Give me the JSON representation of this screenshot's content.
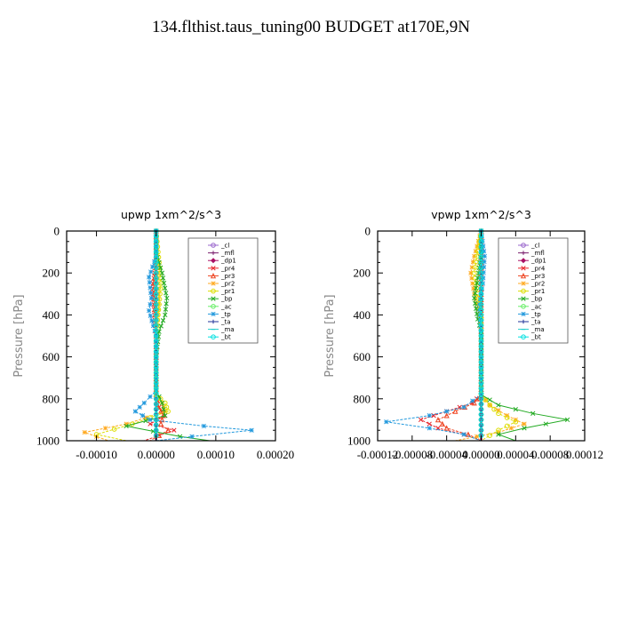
{
  "figure_title": "134.flthist.taus_tuning00  BUDGET at170E,9N",
  "series_colors": {
    "_cl": "#9966cc",
    "_mfl": "#7a1f6e",
    "_dp1": "#aa1166",
    "_pr4": "#e8242a",
    "_pr3": "#ee4422",
    "_pr2": "#ffaa22",
    "_pr1": "#dddd00",
    "_bp": "#22aa22",
    "_ac": "#66ee66",
    "_tp": "#2299dd",
    "_ta": "#223399",
    "_ma": "#22cccc",
    "_bt": "#00e0e0"
  },
  "chart_data": [
    {
      "type": "line",
      "title": "upwp   1xm^2/s^3",
      "ylabel": "Pressure [hPa]",
      "xlabel": "",
      "xlim": [
        -0.00015,
        0.0002
      ],
      "ylim": [
        1000,
        0
      ],
      "y_inverted": true,
      "xticks": [
        "-0.00010",
        "0.00000",
        "0.00010",
        "0.00020"
      ],
      "xtick_values": [
        -0.0001,
        0,
        0.0001,
        0.0002
      ],
      "yticks": [
        "0",
        "200",
        "400",
        "600",
        "800",
        "1000"
      ],
      "ytick_values": [
        0,
        200,
        400,
        600,
        800,
        1000
      ],
      "legend_position": "top-right",
      "series": [
        {
          "name": "_cl",
          "points": [
            [
              0,
              0
            ],
            [
              0,
              1000
            ]
          ]
        },
        {
          "name": "_mfl",
          "points": [
            [
              0,
              0
            ],
            [
              0,
              1000
            ]
          ]
        },
        {
          "name": "_dp1",
          "points": [
            [
              0,
              0
            ],
            [
              0,
              1000
            ]
          ]
        },
        {
          "name": "_pr4",
          "points": [
            [
              0,
              0
            ],
            [
              0,
              150
            ],
            [
              -5e-06,
              250
            ],
            [
              -4e-06,
              350
            ],
            [
              0,
              500
            ],
            [
              0,
              780
            ],
            [
              5e-06,
              840
            ],
            [
              1.5e-05,
              880
            ],
            [
              -1e-05,
              920
            ],
            [
              3e-05,
              950
            ],
            [
              -2e-05,
              1000
            ]
          ]
        },
        {
          "name": "_pr3",
          "points": [
            [
              0,
              0
            ],
            [
              0,
              150
            ],
            [
              -4e-06,
              250
            ],
            [
              -3e-06,
              350
            ],
            [
              0,
              500
            ],
            [
              0,
              780
            ],
            [
              4e-06,
              840
            ],
            [
              1.2e-05,
              880
            ],
            [
              8e-06,
              920
            ],
            [
              2e-05,
              950
            ],
            [
              -1e-05,
              1000
            ]
          ]
        },
        {
          "name": "_pr2",
          "points": [
            [
              0,
              0
            ],
            [
              3e-06,
              200
            ],
            [
              4e-06,
              350
            ],
            [
              0,
              500
            ],
            [
              0,
              780
            ],
            [
              1e-05,
              820
            ],
            [
              1.5e-05,
              860
            ],
            [
              -5e-05,
              920
            ],
            [
              -0.00012,
              960
            ],
            [
              -8e-05,
              1000
            ]
          ]
        },
        {
          "name": "_pr1",
          "points": [
            [
              0,
              0
            ],
            [
              5e-06,
              150
            ],
            [
              8e-06,
              250
            ],
            [
              5e-06,
              350
            ],
            [
              0,
              500
            ],
            [
              0,
              780
            ],
            [
              1.5e-05,
              820
            ],
            [
              2e-05,
              860
            ],
            [
              -4e-05,
              920
            ],
            [
              -0.0001,
              970
            ],
            [
              -5e-05,
              1000
            ]
          ]
        },
        {
          "name": "_bp",
          "points": [
            [
              0,
              0
            ],
            [
              0,
              100
            ],
            [
              1e-05,
              200
            ],
            [
              1.8e-05,
              320
            ],
            [
              1.5e-05,
              400
            ],
            [
              5e-06,
              480
            ],
            [
              0,
              600
            ],
            [
              0,
              760
            ],
            [
              1e-05,
              820
            ],
            [
              1.5e-05,
              880
            ],
            [
              -5e-05,
              930
            ],
            [
              4e-05,
              980
            ],
            [
              9e-05,
              1000
            ]
          ]
        },
        {
          "name": "_ac",
          "points": [
            [
              0,
              0
            ],
            [
              0,
              1000
            ]
          ]
        },
        {
          "name": "_tp",
          "points": [
            [
              0,
              0
            ],
            [
              0,
              120
            ],
            [
              -1.2e-05,
              220
            ],
            [
              -8e-06,
              320
            ],
            [
              -1.2e-05,
              380
            ],
            [
              0,
              500
            ],
            [
              0,
              760
            ],
            [
              -2e-05,
              820
            ],
            [
              -3.5e-05,
              860
            ],
            [
              -1e-05,
              900
            ],
            [
              8e-05,
              930
            ],
            [
              0.00016,
              950
            ],
            [
              6e-05,
              980
            ],
            [
              0,
              1000
            ]
          ]
        },
        {
          "name": "_ta",
          "points": [
            [
              0,
              0
            ],
            [
              0,
              1000
            ]
          ]
        },
        {
          "name": "_ma",
          "points": [
            [
              0,
              0
            ],
            [
              0,
              1000
            ]
          ]
        },
        {
          "name": "_bt",
          "points": [
            [
              0,
              0
            ],
            [
              0,
              1000
            ]
          ]
        }
      ]
    },
    {
      "type": "line",
      "title": "vpwp   1xm^2/s^3",
      "ylabel": "Pressure [hPa]",
      "xlabel": "",
      "xlim": [
        -0.00012,
        0.00012
      ],
      "ylim": [
        1000,
        0
      ],
      "y_inverted": true,
      "xticks": [
        "-0.00012",
        "-0.00008",
        "-0.00004",
        "0.00000",
        "0.00004",
        "0.00008",
        "0.00012"
      ],
      "xtick_values": [
        -0.00012,
        -8e-05,
        -4e-05,
        0,
        4e-05,
        8e-05,
        0.00012
      ],
      "yticks": [
        "0",
        "200",
        "400",
        "600",
        "800",
        "1000"
      ],
      "ytick_values": [
        0,
        200,
        400,
        600,
        800,
        1000
      ],
      "legend_position": "top-right",
      "series": [
        {
          "name": "_cl",
          "points": [
            [
              0,
              0
            ],
            [
              0,
              1000
            ]
          ]
        },
        {
          "name": "_mfl",
          "points": [
            [
              0,
              0
            ],
            [
              0,
              1000
            ]
          ]
        },
        {
          "name": "_dp1",
          "points": [
            [
              0,
              0
            ],
            [
              0,
              1000
            ]
          ]
        },
        {
          "name": "_pr4",
          "points": [
            [
              0,
              0
            ],
            [
              0,
              780
            ],
            [
              -1e-05,
              820
            ],
            [
              -4e-05,
              860
            ],
            [
              -7e-05,
              900
            ],
            [
              -5e-05,
              940
            ],
            [
              -2e-05,
              970
            ],
            [
              0,
              1000
            ]
          ]
        },
        {
          "name": "_pr3",
          "points": [
            [
              0,
              0
            ],
            [
              0,
              780
            ],
            [
              -8e-06,
              820
            ],
            [
              -3e-05,
              860
            ],
            [
              -5e-05,
              900
            ],
            [
              -4e-05,
              940
            ],
            [
              -1.5e-05,
              970
            ],
            [
              0,
              1000
            ]
          ]
        },
        {
          "name": "_pr2",
          "points": [
            [
              0,
              0
            ],
            [
              -8e-06,
              120
            ],
            [
              -1.2e-05,
              200
            ],
            [
              -8e-06,
              300
            ],
            [
              0,
              420
            ],
            [
              0,
              780
            ],
            [
              1e-05,
              830
            ],
            [
              3e-05,
              880
            ],
            [
              5e-05,
              920
            ],
            [
              2e-05,
              960
            ],
            [
              -3e-05,
              1000
            ]
          ]
        },
        {
          "name": "_pr1",
          "points": [
            [
              0,
              0
            ],
            [
              -5e-06,
              120
            ],
            [
              -8e-06,
              200
            ],
            [
              0,
              420
            ],
            [
              0,
              780
            ],
            [
              1e-05,
              830
            ],
            [
              2e-05,
              870
            ],
            [
              4e-05,
              910
            ],
            [
              2e-05,
              950
            ],
            [
              0,
              1000
            ]
          ]
        },
        {
          "name": "_bp",
          "points": [
            [
              0,
              0
            ],
            [
              0,
              100
            ],
            [
              -3e-06,
              200
            ],
            [
              -8e-06,
              320
            ],
            [
              -4e-06,
              420
            ],
            [
              0,
              480
            ],
            [
              0,
              780
            ],
            [
              2e-05,
              830
            ],
            [
              6e-05,
              870
            ],
            [
              0.0001,
              900
            ],
            [
              5e-05,
              940
            ],
            [
              2e-05,
              970
            ],
            [
              4e-05,
              1000
            ]
          ]
        },
        {
          "name": "_ac",
          "points": [
            [
              0,
              0
            ],
            [
              0,
              1000
            ]
          ]
        },
        {
          "name": "_tp",
          "points": [
            [
              0,
              0
            ],
            [
              4e-06,
              120
            ],
            [
              2e-06,
              250
            ],
            [
              -2e-06,
              350
            ],
            [
              0,
              500
            ],
            [
              0,
              780
            ],
            [
              -2e-05,
              840
            ],
            [
              -6e-05,
              880
            ],
            [
              -0.00011,
              910
            ],
            [
              -6e-05,
              940
            ],
            [
              -2e-05,
              970
            ],
            [
              0,
              1000
            ]
          ]
        },
        {
          "name": "_ta",
          "points": [
            [
              0,
              0
            ],
            [
              0,
              1000
            ]
          ]
        },
        {
          "name": "_ma",
          "points": [
            [
              0,
              0
            ],
            [
              0,
              1000
            ]
          ]
        },
        {
          "name": "_bt",
          "points": [
            [
              0,
              0
            ],
            [
              0,
              1000
            ]
          ]
        }
      ]
    }
  ]
}
